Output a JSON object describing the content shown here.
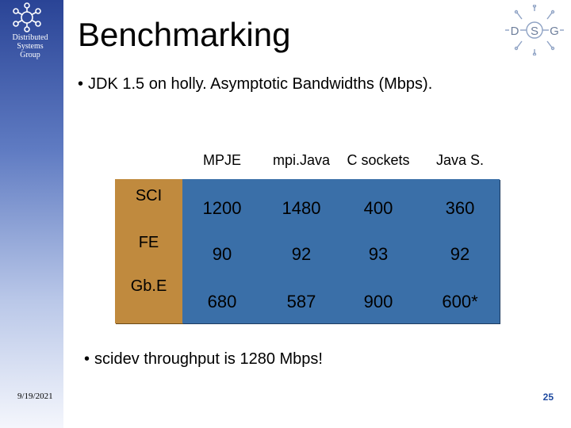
{
  "slide": {
    "title": "Benchmarking",
    "org_name_lines": [
      "Distributed",
      "Systems",
      "Group"
    ],
    "logo_letters": [
      "D",
      "S",
      "G"
    ],
    "bullets": [
      "JDK 1.5 on holly. Asymptotic Bandwidths (Mbps).",
      "scidev throughput is 1280 Mbps!"
    ],
    "bullet_mark": "•",
    "date": "9/19/2021",
    "page_number": "25"
  },
  "table": {
    "columns": [
      "MPJE",
      "mpi.Java",
      "C sockets",
      "Java S."
    ],
    "rows": [
      {
        "label": "SCI",
        "values": [
          "1200",
          "1480",
          "400",
          "360"
        ]
      },
      {
        "label": "FE",
        "values": [
          "90",
          "92",
          "93",
          "92"
        ]
      },
      {
        "label": "Gb.E",
        "values": [
          "680",
          "587",
          "900",
          "600*"
        ]
      }
    ]
  },
  "colors": {
    "sidebar_top": "#2a4496",
    "row_header_bg": "#c08a3e",
    "data_bg": "#3a6fa8",
    "page_number": "#1f4aa0"
  }
}
